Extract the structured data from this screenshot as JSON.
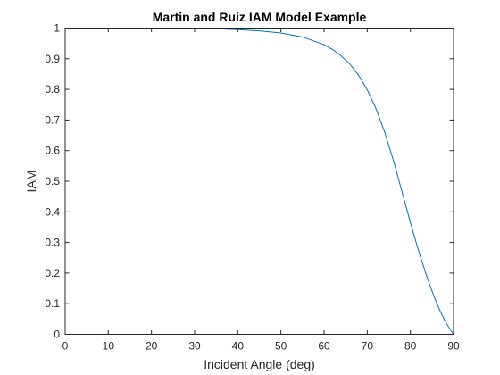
{
  "chart_data": {
    "type": "line",
    "title": "Martin and Ruiz IAM Model Example",
    "xlabel": "Incident Angle (deg)",
    "ylabel": "IAM",
    "xlim": [
      0,
      90
    ],
    "ylim": [
      0,
      1
    ],
    "xticks": [
      0,
      10,
      20,
      30,
      40,
      50,
      60,
      70,
      80,
      90
    ],
    "yticks": [
      0,
      0.1,
      0.2,
      0.3,
      0.4,
      0.5,
      0.6,
      0.7,
      0.8,
      0.9,
      1
    ],
    "xtick_labels": [
      "0",
      "10",
      "20",
      "30",
      "40",
      "50",
      "60",
      "70",
      "80",
      "90"
    ],
    "ytick_labels": [
      "0",
      "0.1",
      "0.2",
      "0.3",
      "0.4",
      "0.5",
      "0.6",
      "0.7",
      "0.8",
      "0.9",
      "1"
    ],
    "grid": false,
    "series": [
      {
        "color": "#0072BD",
        "x": [
          0,
          5,
          10,
          15,
          20,
          25,
          30,
          35,
          40,
          45,
          50,
          55,
          60,
          62,
          64,
          66,
          68,
          70,
          72,
          74,
          76,
          78,
          80,
          82,
          84,
          85,
          86,
          87,
          88,
          89,
          90
        ],
        "y": [
          1.0,
          1.0,
          1.0,
          1.0,
          1.0,
          1.0,
          0.999,
          0.998,
          0.995,
          0.991,
          0.984,
          0.971,
          0.946,
          0.93,
          0.909,
          0.882,
          0.846,
          0.799,
          0.738,
          0.662,
          0.571,
          0.469,
          0.365,
          0.268,
          0.18,
          0.142,
          0.106,
          0.073,
          0.045,
          0.02,
          0.0
        ]
      }
    ]
  }
}
